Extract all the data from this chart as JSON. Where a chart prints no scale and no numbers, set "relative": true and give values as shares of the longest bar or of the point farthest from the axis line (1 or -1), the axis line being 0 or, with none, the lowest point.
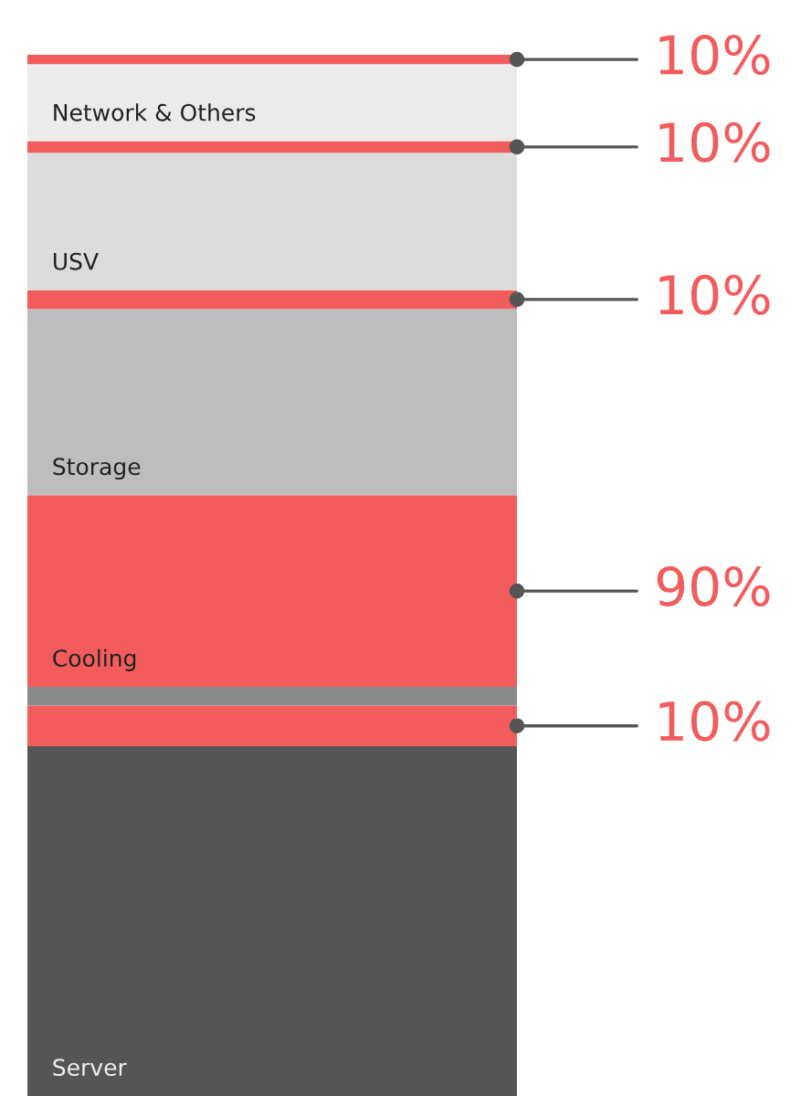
{
  "chart_data": {
    "type": "bar",
    "stacked": true,
    "relative": true,
    "categories": [
      null
    ],
    "legend": false,
    "series": [
      {
        "name": "Server",
        "color": "#555555",
        "values": [
          0.336
        ]
      },
      {
        "color": "#f25c5c",
        "values": [
          0.039
        ]
      },
      {
        "color": "#8a8a8a",
        "values": [
          0.018
        ]
      },
      {
        "name": "Cooling",
        "color": "#f25c5c",
        "values": [
          0.184
        ]
      },
      {
        "name": "Storage",
        "color": "#bdbdbd",
        "values": [
          0.179
        ]
      },
      {
        "color": "#f25c5c",
        "values": [
          0.018
        ]
      },
      {
        "name": "USV",
        "color": "#dcdcdc",
        "values": [
          0.132
        ]
      },
      {
        "color": "#f25c5c",
        "values": [
          0.011
        ]
      },
      {
        "name": "Network & Others",
        "color": "#ebebeb",
        "values": [
          0.074
        ]
      },
      {
        "color": "#f25c5c",
        "values": [
          0.009
        ]
      }
    ],
    "annotations": [
      "10%",
      "10%",
      "10%",
      "90%",
      "10%"
    ]
  }
}
